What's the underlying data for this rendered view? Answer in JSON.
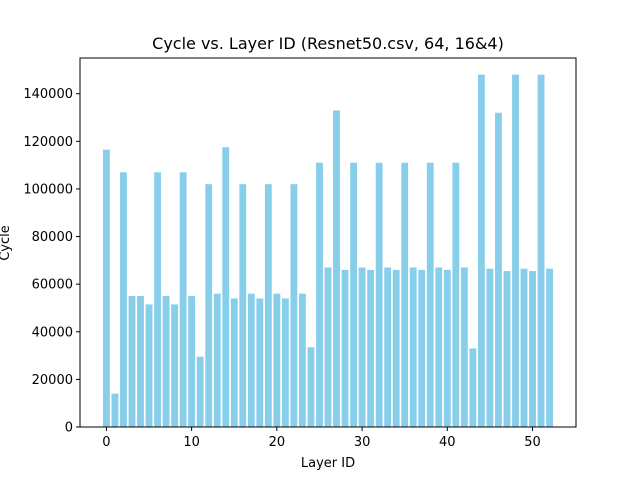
{
  "chart_data": {
    "type": "bar",
    "title": "Cycle vs. Layer ID (Resnet50.csv, 64, 16&4)",
    "xlabel": "Layer ID",
    "ylabel": "Cycle",
    "x": [
      0,
      1,
      2,
      3,
      4,
      5,
      6,
      7,
      8,
      9,
      10,
      11,
      12,
      13,
      14,
      15,
      16,
      17,
      18,
      19,
      20,
      21,
      22,
      23,
      24,
      25,
      26,
      27,
      28,
      29,
      30,
      31,
      32,
      33,
      34,
      35,
      36,
      37,
      38,
      39,
      40,
      41,
      42,
      43,
      44,
      45,
      46,
      47,
      48,
      49,
      50,
      51,
      52
    ],
    "values": [
      116500,
      14000,
      107000,
      55000,
      55000,
      51500,
      107000,
      55000,
      51500,
      107000,
      55000,
      29500,
      102000,
      56000,
      117500,
      54000,
      102000,
      56000,
      54000,
      102000,
      56000,
      54000,
      102000,
      56000,
      33500,
      111000,
      67000,
      133000,
      66000,
      111000,
      67000,
      66000,
      111000,
      67000,
      66000,
      111000,
      67000,
      66000,
      111000,
      67000,
      66000,
      111000,
      67000,
      33000,
      148000,
      66500,
      132000,
      65500,
      148000,
      66500,
      65500,
      148000,
      66500
    ],
    "xlim": [
      -3.1,
      55.1
    ],
    "ylim": [
      0,
      155000
    ],
    "xticks": [
      0,
      10,
      20,
      30,
      40,
      50
    ],
    "yticks": [
      0,
      20000,
      40000,
      60000,
      80000,
      100000,
      120000,
      140000
    ],
    "bar_color": "#87ceeb",
    "grid": false,
    "legend": "none"
  }
}
